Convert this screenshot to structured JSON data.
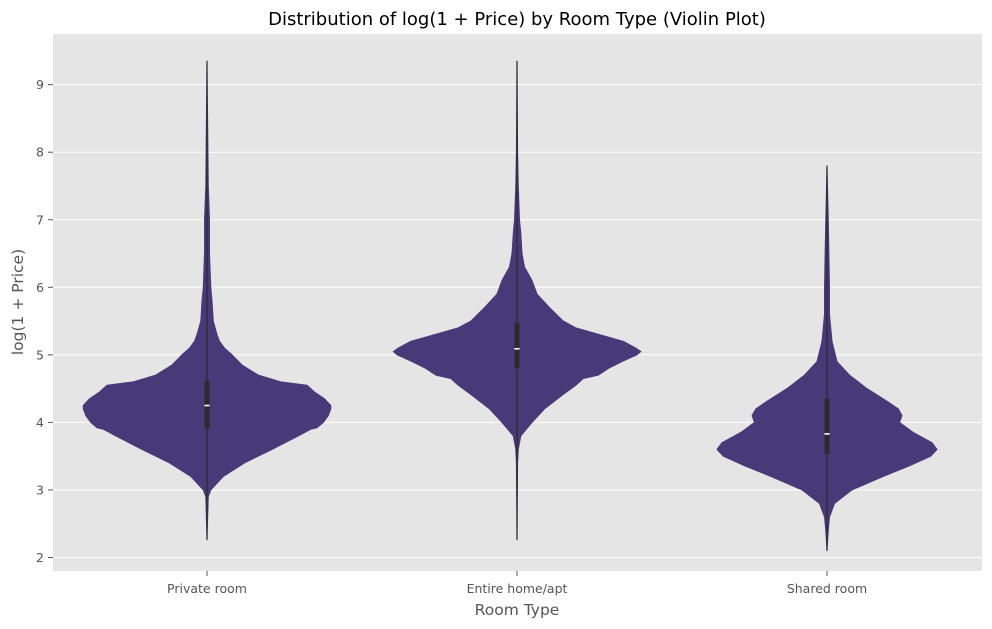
{
  "chart_data": {
    "type": "violin",
    "title": "Distribution of log(1 + Price) by Room Type (Violin Plot)",
    "xlabel": "Room Type",
    "ylabel": "log(1 + Price)",
    "ylim": [
      1.8,
      9.75
    ],
    "yticks": [
      "2",
      "3",
      "4",
      "5",
      "6",
      "7",
      "8",
      "9"
    ],
    "grid": true,
    "colors": {
      "violin": "#483a78",
      "box": "#2b2b2b",
      "median": "#ffffff",
      "background": "#e5e5e5",
      "grid": "#ffffff"
    },
    "categories": [
      "Private room",
      "Entire home/apt",
      "Shared room"
    ],
    "violins": [
      {
        "category": "Private room",
        "min": 2.26,
        "max": 9.35,
        "q1": 3.91,
        "median": 4.25,
        "q3": 4.61,
        "profile": [
          [
            2.26,
            0.0
          ],
          [
            2.9,
            0.01
          ],
          [
            3.0,
            0.03
          ],
          [
            3.2,
            0.13
          ],
          [
            3.4,
            0.3
          ],
          [
            3.6,
            0.52
          ],
          [
            3.8,
            0.73
          ],
          [
            3.9,
            0.83
          ],
          [
            3.92,
            0.88
          ],
          [
            4.0,
            0.93
          ],
          [
            4.1,
            0.97
          ],
          [
            4.2,
            0.99
          ],
          [
            4.25,
            0.99
          ],
          [
            4.35,
            0.94
          ],
          [
            4.45,
            0.86
          ],
          [
            4.55,
            0.8
          ],
          [
            4.6,
            0.59
          ],
          [
            4.7,
            0.41
          ],
          [
            4.85,
            0.28
          ],
          [
            5.0,
            0.2
          ],
          [
            5.1,
            0.14
          ],
          [
            5.2,
            0.1
          ],
          [
            5.3,
            0.08
          ],
          [
            5.5,
            0.05
          ],
          [
            5.8,
            0.04
          ],
          [
            6.0,
            0.03
          ],
          [
            6.5,
            0.02
          ],
          [
            7.0,
            0.02
          ],
          [
            7.5,
            0.01
          ],
          [
            8.5,
            0.005
          ],
          [
            9.35,
            0.0
          ]
        ]
      },
      {
        "category": "Entire home/apt",
        "min": 2.26,
        "max": 9.35,
        "q1": 4.8,
        "median": 5.09,
        "q3": 5.47,
        "profile": [
          [
            2.26,
            0.0
          ],
          [
            3.4,
            0.005
          ],
          [
            3.6,
            0.01
          ],
          [
            3.8,
            0.03
          ],
          [
            4.0,
            0.12
          ],
          [
            4.2,
            0.22
          ],
          [
            4.4,
            0.36
          ],
          [
            4.55,
            0.47
          ],
          [
            4.65,
            0.53
          ],
          [
            4.7,
            0.65
          ],
          [
            4.8,
            0.73
          ],
          [
            4.9,
            0.84
          ],
          [
            5.0,
            0.96
          ],
          [
            5.05,
            0.99
          ],
          [
            5.1,
            0.95
          ],
          [
            5.2,
            0.85
          ],
          [
            5.3,
            0.66
          ],
          [
            5.4,
            0.47
          ],
          [
            5.5,
            0.37
          ],
          [
            5.7,
            0.26
          ],
          [
            5.9,
            0.16
          ],
          [
            6.1,
            0.12
          ],
          [
            6.3,
            0.06
          ],
          [
            6.5,
            0.04
          ],
          [
            6.8,
            0.03
          ],
          [
            7.0,
            0.02
          ],
          [
            7.5,
            0.01
          ],
          [
            8.0,
            0.005
          ],
          [
            9.35,
            0.0
          ]
        ]
      },
      {
        "category": "Shared room",
        "min": 2.1,
        "max": 7.8,
        "q1": 3.53,
        "median": 3.83,
        "q3": 4.35,
        "profile": [
          [
            2.1,
            0.0
          ],
          [
            2.4,
            0.01
          ],
          [
            2.6,
            0.02
          ],
          [
            2.8,
            0.06
          ],
          [
            3.0,
            0.2
          ],
          [
            3.2,
            0.45
          ],
          [
            3.35,
            0.65
          ],
          [
            3.5,
            0.83
          ],
          [
            3.6,
            0.88
          ],
          [
            3.7,
            0.84
          ],
          [
            3.85,
            0.69
          ],
          [
            4.0,
            0.58
          ],
          [
            4.1,
            0.6
          ],
          [
            4.2,
            0.57
          ],
          [
            4.3,
            0.49
          ],
          [
            4.5,
            0.32
          ],
          [
            4.7,
            0.18
          ],
          [
            4.9,
            0.08
          ],
          [
            5.2,
            0.04
          ],
          [
            5.6,
            0.02
          ],
          [
            6.0,
            0.02
          ],
          [
            6.5,
            0.015
          ],
          [
            7.0,
            0.01
          ],
          [
            7.8,
            0.0
          ]
        ]
      }
    ]
  }
}
